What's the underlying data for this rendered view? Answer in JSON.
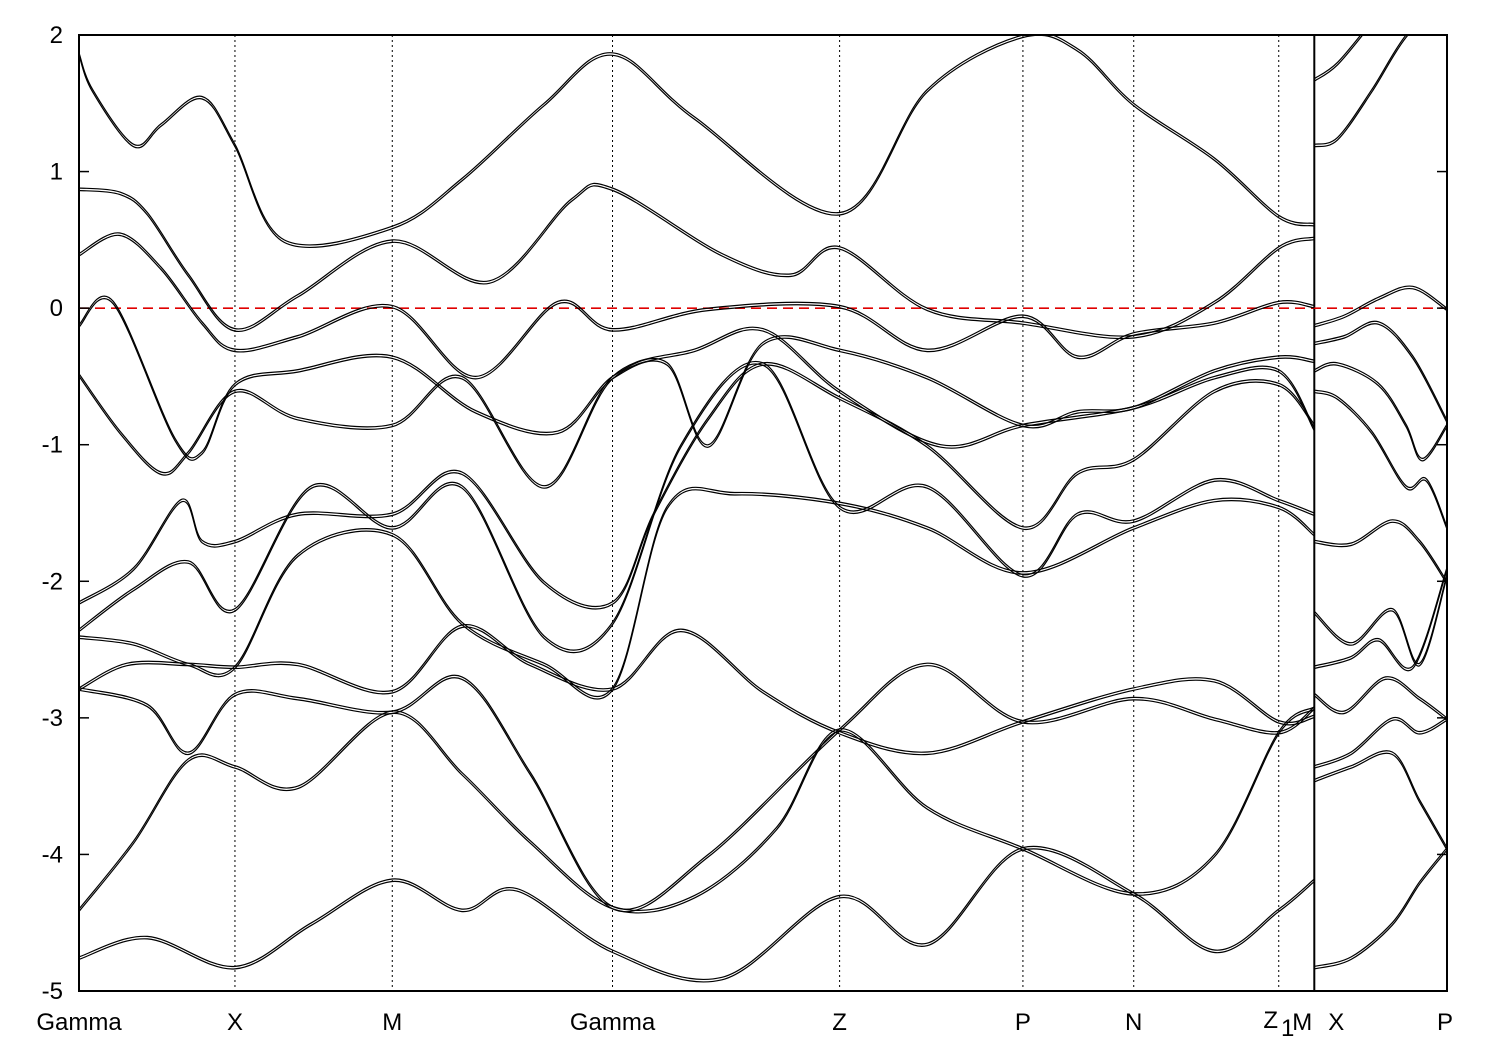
{
  "chart_data": {
    "type": "line",
    "title": "",
    "xlabel": "",
    "ylabel": "",
    "ylim": [
      -5,
      2
    ],
    "yticks": [
      -5,
      -4,
      -3,
      -2,
      -1,
      0,
      1,
      2
    ],
    "ytick_labels": [
      "-5",
      "-4",
      "-3",
      "-2",
      "-1",
      "0",
      "1",
      "2"
    ],
    "xlim": [
      0,
      10
    ],
    "kpoints": [
      {
        "label": "Gamma",
        "x": 0.0
      },
      {
        "label": "X",
        "x": 1.14
      },
      {
        "label": "M",
        "x": 2.29
      },
      {
        "label": "Gamma",
        "x": 3.9
      },
      {
        "label": "Z",
        "x": 5.56
      },
      {
        "label": "P",
        "x": 6.9
      },
      {
        "label": "N",
        "x": 7.71
      },
      {
        "label": "Z",
        "x": 8.77
      },
      {
        "label": "1",
        "x": 8.77
      },
      {
        "label": "M",
        "x": 9.03
      },
      {
        "label": "X",
        "x": 9.03
      },
      {
        "label": "P",
        "x": 10.0
      }
    ],
    "fermi_level": 0,
    "fermi_color": "#e00000",
    "line_color": "#000000",
    "grid": false,
    "legend": "none",
    "series": [
      {
        "x": [
          0,
          0.1,
          0.4,
          0.6,
          0.9,
          1.14,
          1.5,
          2.29,
          2.8,
          3.4,
          3.9,
          4.5,
          5.56,
          6.2,
          6.9,
          7.3,
          7.71,
          8.3,
          8.77,
          9.03
        ],
        "y": [
          1.87,
          1.6,
          1.2,
          1.35,
          1.55,
          1.2,
          0.5,
          0.6,
          0.95,
          1.5,
          1.87,
          1.4,
          0.7,
          1.6,
          2.0,
          1.9,
          1.5,
          1.1,
          0.68,
          0.62
        ]
      },
      {
        "x": [
          0,
          0.3,
          0.5,
          0.8,
          1.14,
          1.6,
          2.29,
          3.0,
          3.6,
          3.9,
          4.7,
          5.2,
          5.56,
          6.2,
          6.9,
          7.71,
          8.3,
          8.77,
          9.03
        ],
        "y": [
          0.88,
          0.85,
          0.7,
          0.25,
          -0.15,
          0.1,
          0.5,
          0.2,
          0.8,
          0.88,
          0.4,
          0.25,
          0.45,
          0.0,
          -0.1,
          -0.2,
          0.05,
          0.45,
          0.52
        ]
      },
      {
        "x": [
          0,
          0.3,
          0.6,
          0.9,
          1.14,
          1.6,
          2.29,
          2.9,
          3.5,
          3.9,
          4.6,
          5.56,
          6.2,
          6.9,
          7.3,
          7.71,
          8.3,
          8.77,
          9.03
        ],
        "y": [
          0.4,
          0.55,
          0.3,
          -0.1,
          -0.3,
          -0.2,
          0.02,
          -0.5,
          0.05,
          -0.15,
          0.0,
          0.02,
          -0.3,
          -0.05,
          -0.35,
          -0.18,
          -0.1,
          0.05,
          0.02
        ]
      },
      {
        "x": [
          0,
          0.25,
          0.7,
          0.9,
          1.14,
          1.6,
          2.29,
          2.9,
          3.5,
          3.9,
          4.3,
          4.6,
          5.0,
          5.56,
          6.2,
          6.9,
          7.3,
          7.71,
          8.3,
          8.77,
          9.03
        ],
        "y": [
          -0.12,
          0.05,
          -0.95,
          -1.05,
          -0.55,
          -0.45,
          -0.35,
          -0.75,
          -0.9,
          -0.5,
          -0.4,
          -1.0,
          -0.25,
          -0.3,
          -0.5,
          -0.85,
          -0.75,
          -0.72,
          -0.45,
          -0.35,
          -0.38
        ]
      },
      {
        "x": [
          0,
          0.3,
          0.6,
          0.8,
          1.14,
          1.6,
          2.29,
          2.8,
          3.4,
          3.9,
          4.5,
          5.0,
          5.56,
          6.3,
          6.9,
          7.71,
          8.3,
          8.77,
          9.03
        ],
        "y": [
          -0.48,
          -0.9,
          -1.2,
          -1.05,
          -0.6,
          -0.8,
          -0.85,
          -0.5,
          -1.3,
          -0.5,
          -0.3,
          -0.15,
          -0.6,
          -1.0,
          -0.85,
          -0.72,
          -0.5,
          -0.45,
          -0.88
        ]
      },
      {
        "x": [
          0,
          0.4,
          0.75,
          0.9,
          1.14,
          1.6,
          2.29,
          2.8,
          3.4,
          3.9,
          4.2,
          4.6,
          5.0,
          5.56,
          6.2,
          6.9,
          7.3,
          7.71,
          8.3,
          8.77,
          9.03
        ],
        "y": [
          -2.15,
          -1.9,
          -1.4,
          -1.7,
          -1.7,
          -1.5,
          -1.5,
          -1.2,
          -2.0,
          -2.15,
          -1.5,
          -0.8,
          -0.4,
          -0.65,
          -1.0,
          -1.6,
          -1.2,
          -1.1,
          -0.6,
          -0.55,
          -0.85
        ]
      },
      {
        "x": [
          0,
          0.4,
          0.8,
          1.14,
          1.7,
          2.29,
          2.8,
          3.4,
          3.9,
          4.4,
          5.0,
          5.56,
          6.2,
          6.9,
          7.3,
          7.71,
          8.3,
          8.77,
          9.03
        ],
        "y": [
          -2.35,
          -2.05,
          -1.85,
          -2.2,
          -1.3,
          -1.6,
          -1.3,
          -2.4,
          -2.3,
          -1.0,
          -0.4,
          -1.45,
          -1.3,
          -1.95,
          -1.5,
          -1.55,
          -1.25,
          -1.4,
          -1.5
        ]
      },
      {
        "x": [
          0,
          0.4,
          0.8,
          1.14,
          1.6,
          2.29,
          2.8,
          3.4,
          3.9,
          4.3,
          4.8,
          5.56,
          6.2,
          6.9,
          7.71,
          8.3,
          8.77,
          9.03
        ],
        "y": [
          -2.4,
          -2.45,
          -2.6,
          -2.62,
          -1.8,
          -1.65,
          -2.3,
          -2.6,
          -2.78,
          -1.45,
          -1.35,
          -1.42,
          -1.6,
          -1.93,
          -1.6,
          -1.4,
          -1.45,
          -1.65
        ]
      },
      {
        "x": [
          0,
          0.35,
          0.8,
          1.14,
          1.6,
          2.29,
          2.8,
          3.3,
          3.9,
          4.4,
          5.0,
          5.56,
          6.2,
          6.9,
          7.71,
          8.3,
          8.77,
          9.03
        ],
        "y": [
          -2.78,
          -2.6,
          -2.6,
          -2.62,
          -2.6,
          -2.8,
          -2.32,
          -2.6,
          -2.78,
          -2.35,
          -2.8,
          -3.1,
          -3.25,
          -3.02,
          -2.78,
          -2.72,
          -3.02,
          -2.98
        ]
      },
      {
        "x": [
          0,
          0.5,
          0.8,
          1.14,
          1.6,
          2.29,
          2.8,
          3.3,
          3.9,
          4.6,
          5.56,
          6.2,
          6.9,
          7.71,
          8.3,
          8.77,
          9.03
        ],
        "y": [
          -2.78,
          -2.9,
          -3.25,
          -2.82,
          -2.85,
          -2.95,
          -2.7,
          -3.4,
          -4.38,
          -4.0,
          -3.08,
          -2.6,
          -3.02,
          -2.85,
          -3.0,
          -3.1,
          -2.92
        ]
      },
      {
        "x": [
          0,
          0.4,
          0.8,
          1.14,
          1.6,
          2.29,
          2.8,
          3.3,
          3.9,
          4.5,
          5.1,
          5.56,
          6.2,
          6.9,
          7.71,
          8.3,
          8.77,
          9.03
        ],
        "y": [
          -4.4,
          -3.9,
          -3.3,
          -3.35,
          -3.5,
          -2.95,
          -3.4,
          -3.9,
          -4.38,
          -4.3,
          -3.8,
          -3.08,
          -3.65,
          -3.95,
          -4.28,
          -4.0,
          -3.1,
          -2.92
        ]
      },
      {
        "x": [
          0,
          0.5,
          1.14,
          1.7,
          2.29,
          2.8,
          3.2,
          3.9,
          4.7,
          5.56,
          6.2,
          6.9,
          7.71,
          8.3,
          8.77,
          9.03
        ],
        "y": [
          -4.75,
          -4.6,
          -4.82,
          -4.5,
          -4.18,
          -4.4,
          -4.25,
          -4.7,
          -4.9,
          -4.3,
          -4.65,
          -3.95,
          -4.28,
          -4.7,
          -4.4,
          -4.18
        ]
      },
      {
        "x": [
          9.03,
          9.2,
          9.45,
          9.7,
          10.0
        ],
        "y": [
          1.68,
          1.8,
          2.1,
          2.4,
          2.6
        ]
      },
      {
        "x": [
          9.03,
          9.2,
          9.45,
          9.7,
          10.0
        ],
        "y": [
          1.2,
          1.25,
          1.6,
          2.0,
          2.3
        ]
      },
      {
        "x": [
          9.03,
          9.25,
          9.5,
          9.75,
          10.0
        ],
        "y": [
          -0.12,
          -0.05,
          0.08,
          0.16,
          0.0
        ]
      },
      {
        "x": [
          9.03,
          9.25,
          9.5,
          9.75,
          10.0
        ],
        "y": [
          -0.25,
          -0.2,
          -0.1,
          -0.35,
          -0.82
        ]
      },
      {
        "x": [
          9.03,
          9.2,
          9.5,
          9.7,
          9.82,
          10.0
        ],
        "y": [
          -0.45,
          -0.4,
          -0.55,
          -0.85,
          -1.1,
          -0.85
        ]
      },
      {
        "x": [
          9.03,
          9.2,
          9.45,
          9.7,
          9.85,
          10.0
        ],
        "y": [
          -0.6,
          -0.65,
          -0.9,
          -1.3,
          -1.25,
          -1.6
        ]
      },
      {
        "x": [
          9.03,
          9.3,
          9.6,
          9.8,
          10.0
        ],
        "y": [
          -1.7,
          -1.72,
          -1.55,
          -1.7,
          -2.0
        ]
      },
      {
        "x": [
          9.03,
          9.3,
          9.6,
          9.8,
          10.0
        ],
        "y": [
          -2.22,
          -2.45,
          -2.2,
          -2.6,
          -1.95
        ]
      },
      {
        "x": [
          9.03,
          9.3,
          9.5,
          9.75,
          10.0
        ],
        "y": [
          -2.62,
          -2.55,
          -2.42,
          -2.62,
          -1.9
        ]
      },
      {
        "x": [
          9.03,
          9.25,
          9.55,
          9.8,
          10.0
        ],
        "y": [
          -2.82,
          -2.95,
          -2.7,
          -2.85,
          -3.0
        ]
      },
      {
        "x": [
          9.03,
          9.3,
          9.6,
          9.8,
          10.0
        ],
        "y": [
          -3.35,
          -3.25,
          -3.0,
          -3.1,
          -3.0
        ]
      },
      {
        "x": [
          9.03,
          9.3,
          9.6,
          9.8,
          10.0
        ],
        "y": [
          -3.45,
          -3.35,
          -3.25,
          -3.6,
          -3.95
        ]
      },
      {
        "x": [
          9.03,
          9.3,
          9.6,
          9.8,
          10.0
        ],
        "y": [
          -4.82,
          -4.75,
          -4.5,
          -4.2,
          -3.95
        ]
      }
    ]
  }
}
